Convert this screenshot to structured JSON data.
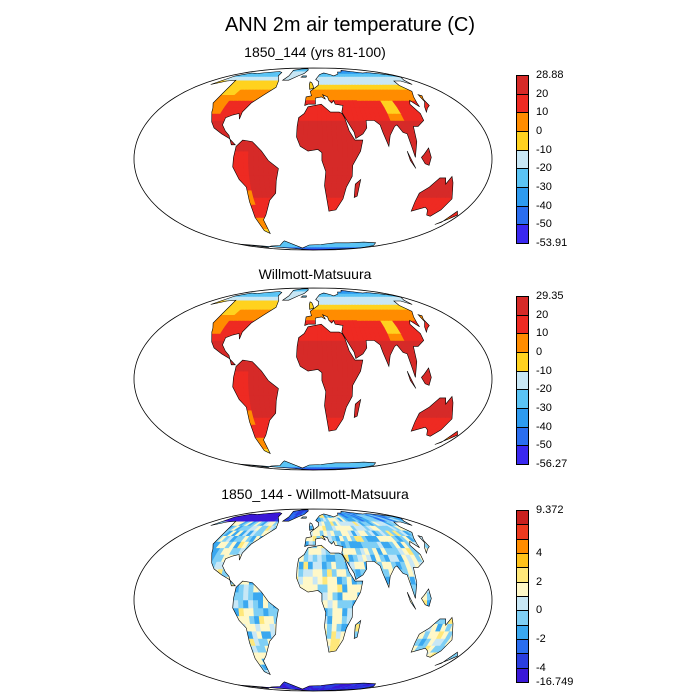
{
  "title": "ANN 2m air temperature (C)",
  "panels": [
    {
      "title": "1850_144 (yrs 81-100)",
      "kind": "abs",
      "colorbar": {
        "max_label": "28.88",
        "min_label": "-53.91",
        "tick_labels": [
          "20",
          "10",
          "0",
          "-10",
          "-20",
          "-30",
          "-40",
          "-50"
        ],
        "colors": [
          "#d62a28",
          "#ee2a22",
          "#ff8c00",
          "#ffd21f",
          "#c8e7f5",
          "#5bc4f5",
          "#2d9bf0",
          "#2a6ef0",
          "#3a28f0"
        ]
      }
    },
    {
      "title": "Willmott-Matsuura",
      "kind": "abs",
      "colorbar": {
        "max_label": "29.35",
        "min_label": "-56.27",
        "tick_labels": [
          "20",
          "10",
          "0",
          "-10",
          "-20",
          "-30",
          "-40",
          "-50"
        ],
        "colors": [
          "#d62a28",
          "#ee2a22",
          "#ff8c00",
          "#ffd21f",
          "#c8e7f5",
          "#5bc4f5",
          "#2d9bf0",
          "#2a6ef0",
          "#3a28f0"
        ]
      }
    },
    {
      "title": "1850_144 - Willmott-Matsuura",
      "kind": "diff",
      "colorbar": {
        "max_label": "9.372",
        "min_label": "-16.749",
        "tick_labels": [
          "4",
          "2",
          "0",
          "-2",
          "-4"
        ],
        "colors": [
          "#c8201e",
          "#ee3a1e",
          "#ff8c00",
          "#ffc21a",
          "#ffe87a",
          "#fff8c8",
          "#c8e7f5",
          "#7fcff5",
          "#3aa8f0",
          "#2a6ef0",
          "#2a3ee0",
          "#3a18d8"
        ]
      }
    }
  ]
}
